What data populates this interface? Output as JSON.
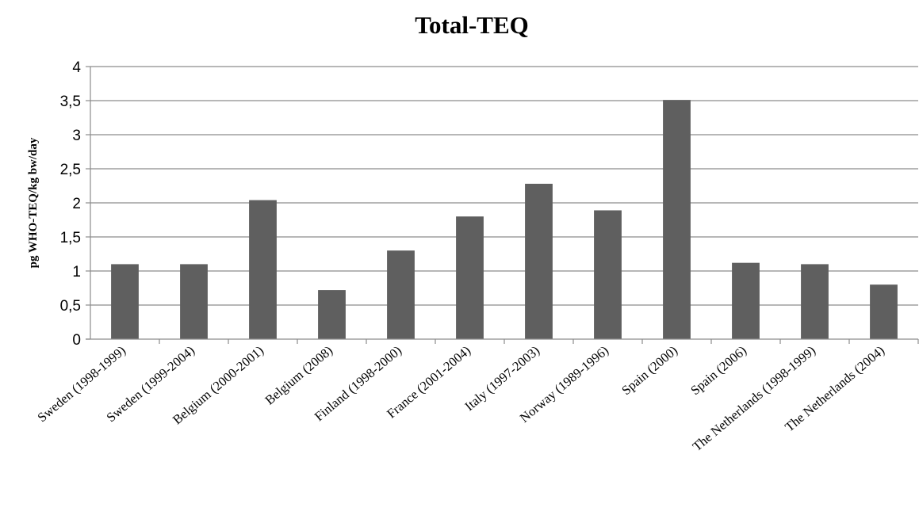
{
  "chart_data": {
    "type": "bar",
    "title": "Total-TEQ",
    "xlabel": "",
    "ylabel": "pg WHO-TEQ/kg bw/day",
    "ylim": [
      0,
      4
    ],
    "yticks": [
      0,
      0.5,
      1,
      1.5,
      2,
      2.5,
      3,
      3.5,
      4
    ],
    "ytick_labels": [
      "0",
      "0,5",
      "1",
      "1,5",
      "2",
      "2,5",
      "3",
      "3,5",
      "4"
    ],
    "grid": true,
    "legend": "none",
    "bar_color": "#5f5f5f",
    "categories": [
      "Sweden (1998-1999)",
      "Sweden (1999-2004)",
      "Belgium (2000-2001)",
      "Belgium (2008)",
      "Finland (1998-2000)",
      "France (2001-2004)",
      "Italy (1997-2003)",
      "Norway (1989-1996)",
      "Spain (2000)",
      "Spain (2006)",
      "The Netherlands (1998-1999)",
      "The Netherlands (2004)"
    ],
    "values": [
      1.1,
      1.1,
      2.04,
      0.72,
      1.3,
      1.8,
      2.28,
      1.89,
      3.51,
      1.12,
      1.1,
      0.8
    ]
  }
}
